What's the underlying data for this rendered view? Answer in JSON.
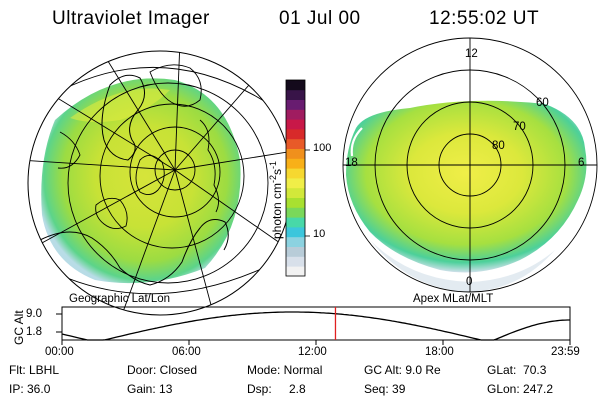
{
  "header": {
    "instrument": "Ultraviolet Imager",
    "date": "01 Jul 00",
    "time": "12:55:02 UT"
  },
  "left_panel": {
    "caption": "Geographic Lat/Lon"
  },
  "right_panel": {
    "caption": "Apex MLat/MLT",
    "mlt_labels": {
      "top": "12",
      "left": "18",
      "right": "6",
      "bottom": "0"
    },
    "lat_labels": [
      "60",
      "70",
      "80"
    ]
  },
  "colorbar": {
    "unit_main": "photon cm",
    "unit_exp1": "-2",
    "unit_s": "s",
    "unit_exp2": "-1",
    "ticks": [
      "100",
      "10"
    ],
    "colors": [
      "#f2f2f2",
      "#d8e0ea",
      "#b8ccd8",
      "#8cd2e0",
      "#3cc6dc",
      "#48d8a8",
      "#7ad85a",
      "#a8e030",
      "#d2e83a",
      "#f0ee48",
      "#f6d830",
      "#f8b018",
      "#f0901c",
      "#e85a28",
      "#d82a2a",
      "#c81848",
      "#a01c60",
      "#681c70",
      "#381448",
      "#140a1c"
    ]
  },
  "altitude_plot": {
    "ylabel": "GC Alt",
    "yticks": [
      "9.0",
      "1.8"
    ],
    "xticks": [
      "00:00",
      "06:00",
      "12:00",
      "18:00",
      "23:59"
    ],
    "current_time_hours": 12.92,
    "marker_color": "#e02020"
  },
  "info": {
    "filter": "Flt: LBHL",
    "ip": "IP: 36.0",
    "door": "Door: Closed",
    "gain": "Gain: 13",
    "mode": "Mode: Normal",
    "dsp_label": "Dsp:",
    "dsp_value": "2.8",
    "gc_alt": "GC Alt: 9.0 Re",
    "seq": "Seq: 39",
    "glat": "GLat:  70.3",
    "glon": "GLon: 247.2"
  }
}
